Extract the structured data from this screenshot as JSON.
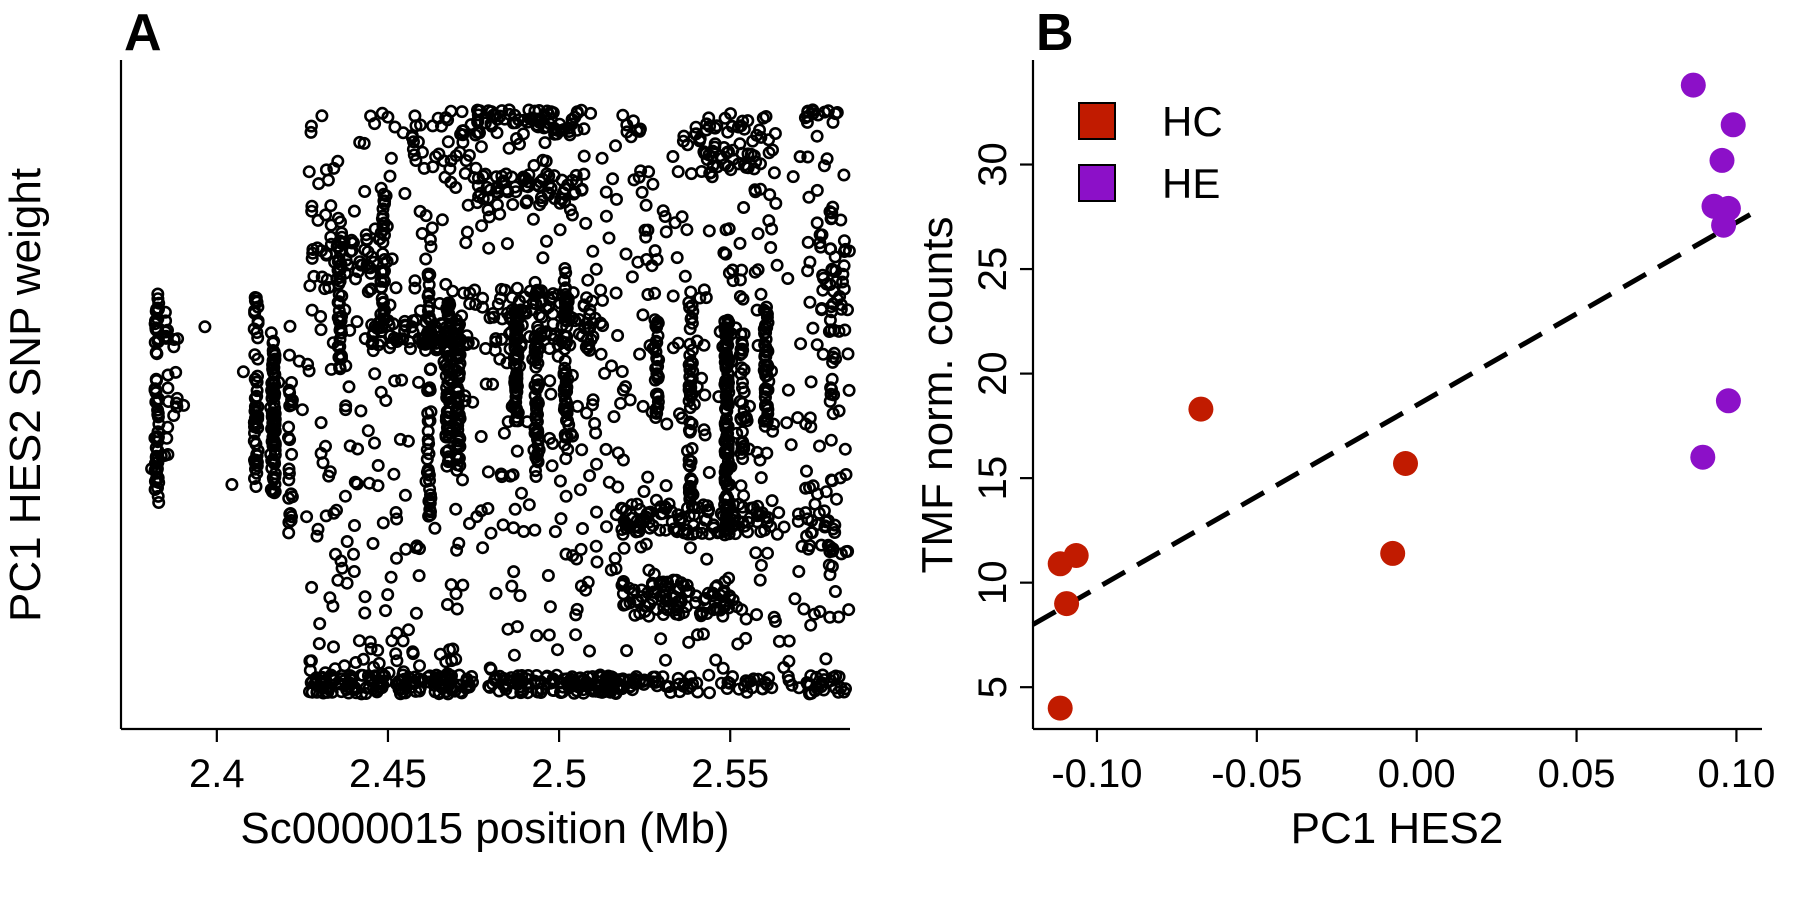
{
  "chart_data": [
    {
      "panel_label": "A",
      "type": "scatter",
      "title": "",
      "xlabel": "Sc0000015 position (Mb)",
      "ylabel": "PC1 HES2 SNP weight",
      "xlim": [
        2.372,
        2.585
      ],
      "ylim": [
        0,
        1
      ],
      "x_ticks": [
        2.4,
        2.45,
        2.5,
        2.55
      ],
      "x_tick_labels": [
        "2.4",
        "2.45",
        "2.5",
        "2.55"
      ],
      "y_ticks_shown": false,
      "marker": "open-circle",
      "marker_color": "#000000",
      "grid": false,
      "columns": [
        {
          "x": 2.3825,
          "y_range": [
            0.33,
            0.66
          ],
          "count": 60
        },
        {
          "x": 2.3855,
          "y_range": [
            0.4,
            0.64
          ],
          "count": 12
        },
        {
          "x": 2.388,
          "y_range": [
            0.42,
            0.6
          ],
          "count": 8
        },
        {
          "x": 2.4115,
          "y_range": [
            0.35,
            0.66
          ],
          "count": 50
        },
        {
          "x": 2.4165,
          "y_range": [
            0.33,
            0.6
          ],
          "count": 80
        },
        {
          "x": 2.4215,
          "y_range": [
            0.28,
            0.62
          ],
          "count": 25
        },
        {
          "x": 2.436,
          "y_range": [
            0.54,
            0.78
          ],
          "count": 40
        },
        {
          "x": 2.4485,
          "y_range": [
            0.6,
            0.83
          ],
          "count": 35
        },
        {
          "x": 2.462,
          "y_range": [
            0.3,
            0.7
          ],
          "count": 50
        },
        {
          "x": 2.4675,
          "y_range": [
            0.38,
            0.65
          ],
          "count": 70
        },
        {
          "x": 2.4705,
          "y_range": [
            0.38,
            0.62
          ],
          "count": 60
        },
        {
          "x": 2.4875,
          "y_range": [
            0.46,
            0.64
          ],
          "count": 60
        },
        {
          "x": 2.4935,
          "y_range": [
            0.38,
            0.68
          ],
          "count": 50
        },
        {
          "x": 2.502,
          "y_range": [
            0.4,
            0.7
          ],
          "count": 50
        },
        {
          "x": 2.5285,
          "y_range": [
            0.46,
            0.62
          ],
          "count": 30
        },
        {
          "x": 2.5385,
          "y_range": [
            0.3,
            0.7
          ],
          "count": 50
        },
        {
          "x": 2.549,
          "y_range": [
            0.28,
            0.62
          ],
          "count": 110
        },
        {
          "x": 2.5535,
          "y_range": [
            0.4,
            0.7
          ],
          "count": 30
        },
        {
          "x": 2.5605,
          "y_range": [
            0.45,
            0.64
          ],
          "count": 50
        },
        {
          "x": 2.5795,
          "y_range": [
            0.2,
            0.8
          ],
          "count": 30
        }
      ],
      "clusters": [
        {
          "x_range": [
            2.427,
            2.475
          ],
          "y_range": [
            0.03,
            0.06
          ],
          "count": 140
        },
        {
          "x_range": [
            2.479,
            2.525
          ],
          "y_range": [
            0.03,
            0.06
          ],
          "count": 140
        },
        {
          "x_range": [
            2.527,
            2.585
          ],
          "y_range": [
            0.03,
            0.06
          ],
          "count": 70
        },
        {
          "x_range": [
            2.4265,
            2.4815
          ],
          "y_range": [
            0.06,
            0.12
          ],
          "count": 25
        },
        {
          "x_range": [
            2.518,
            2.55
          ],
          "y_range": [
            0.15,
            0.21
          ],
          "count": 90
        },
        {
          "x_range": [
            2.518,
            2.562
          ],
          "y_range": [
            0.28,
            0.33
          ],
          "count": 90
        },
        {
          "x_range": [
            2.572,
            2.585
          ],
          "y_range": [
            0.25,
            0.36
          ],
          "count": 25
        },
        {
          "x_range": [
            2.427,
            2.445
          ],
          "y_range": [
            0.66,
            0.75
          ],
          "count": 40
        },
        {
          "x_range": [
            2.445,
            2.475
          ],
          "y_range": [
            0.57,
            0.62
          ],
          "count": 70
        },
        {
          "x_range": [
            2.48,
            2.51
          ],
          "y_range": [
            0.57,
            0.67
          ],
          "count": 90
        },
        {
          "x_range": [
            2.475,
            2.508
          ],
          "y_range": [
            0.8,
            0.85
          ],
          "count": 60
        },
        {
          "x_range": [
            2.475,
            2.51
          ],
          "y_range": [
            0.91,
            0.95
          ],
          "count": 60
        },
        {
          "x_range": [
            2.539,
            2.563
          ],
          "y_range": [
            0.85,
            0.94
          ],
          "count": 60
        },
        {
          "x_range": [
            2.455,
            2.477
          ],
          "y_range": [
            0.84,
            0.95
          ],
          "count": 30
        },
        {
          "x_range": [
            2.571,
            2.585
          ],
          "y_range": [
            0.63,
            0.78
          ],
          "count": 30
        },
        {
          "x_range": [
            2.571,
            2.583
          ],
          "y_range": [
            0.93,
            0.95
          ],
          "count": 12
        },
        {
          "x_range": [
            2.426,
            2.585
          ],
          "y_range": [
            0.07,
            0.95
          ],
          "count": 650
        },
        {
          "x_range": [
            2.372,
            2.426
          ],
          "y_range": [
            0.3,
            0.65
          ],
          "count": 15
        }
      ]
    },
    {
      "panel_label": "B",
      "type": "scatter",
      "title": "",
      "xlabel": "PC1 HES2",
      "ylabel": "TMF norm. counts",
      "xlim": [
        -0.12,
        0.108
      ],
      "ylim": [
        3,
        35
      ],
      "x_ticks": [
        -0.1,
        -0.05,
        0.0,
        0.05,
        0.1
      ],
      "x_tick_labels": [
        "-0.10",
        "-0.05",
        "0.00",
        "0.05",
        "0.10"
      ],
      "y_ticks": [
        5,
        10,
        15,
        20,
        25,
        30
      ],
      "y_tick_labels": [
        "5",
        "10",
        "15",
        "20",
        "25",
        "30"
      ],
      "grid": false,
      "legend": {
        "placement": "top-left",
        "entries": [
          {
            "label": "HC",
            "color": "#c11b00"
          },
          {
            "label": "HE",
            "color": "#8c10c8"
          }
        ]
      },
      "series": [
        {
          "name": "HC",
          "color": "#c11b00",
          "points": [
            {
              "x": -0.1115,
              "y": 10.9
            },
            {
              "x": -0.1065,
              "y": 11.3
            },
            {
              "x": -0.1095,
              "y": 9.0
            },
            {
              "x": -0.1115,
              "y": 4.0
            },
            {
              "x": -0.0675,
              "y": 18.3
            },
            {
              "x": -0.0075,
              "y": 11.4
            },
            {
              "x": -0.0035,
              "y": 15.7
            }
          ]
        },
        {
          "name": "HE",
          "color": "#8c10c8",
          "points": [
            {
              "x": 0.0865,
              "y": 33.8
            },
            {
              "x": 0.099,
              "y": 31.9
            },
            {
              "x": 0.0955,
              "y": 30.2
            },
            {
              "x": 0.093,
              "y": 28.0
            },
            {
              "x": 0.0975,
              "y": 27.9
            },
            {
              "x": 0.096,
              "y": 27.1
            },
            {
              "x": 0.0975,
              "y": 18.7
            },
            {
              "x": 0.0895,
              "y": 16.0
            }
          ]
        }
      ],
      "trendline": {
        "style": "dashed",
        "color": "#000000",
        "x": [
          -0.12,
          0.1065
        ],
        "y": [
          8.0,
          27.8
        ]
      }
    }
  ]
}
